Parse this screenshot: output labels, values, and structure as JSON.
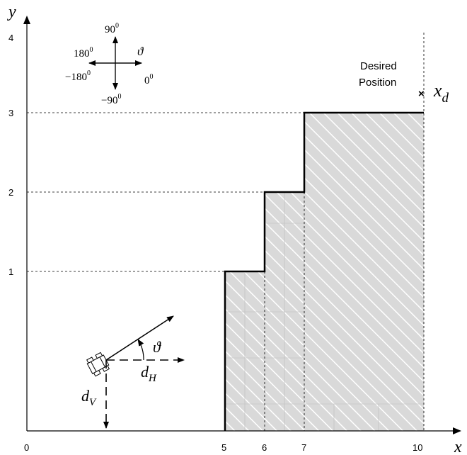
{
  "axes": {
    "x_label": "x",
    "y_label": "y",
    "x_ticks": [
      "0",
      "5",
      "6",
      "7",
      "10"
    ],
    "y_ticks": [
      "1",
      "2",
      "3",
      "4"
    ]
  },
  "compass": {
    "north": "90",
    "south": "−90",
    "west_upper": "180",
    "west_lower": "−180",
    "east": "0",
    "degree_mark": "0",
    "angle_symbol": "ϑ"
  },
  "target": {
    "label_line1": "Desired",
    "label_line2": "Position",
    "symbol": "x",
    "subscript": "d",
    "marker": "×"
  },
  "vehicle": {
    "heading_symbol": "ϑ",
    "dh_symbol": "d",
    "dh_subscript": "H",
    "dv_symbol": "d",
    "dv_subscript": "V"
  },
  "colors": {
    "obstacle_fill": "#d9d9d9",
    "hatch": "#ffffff",
    "line": "#000000"
  }
}
